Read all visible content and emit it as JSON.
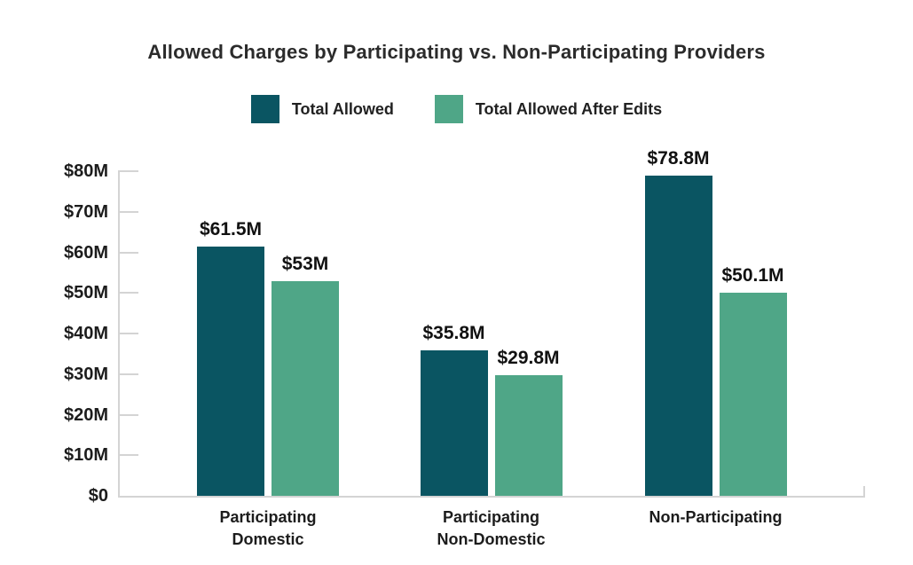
{
  "title": "Allowed Charges by Participating vs. Non-Participating Providers",
  "legend": [
    {
      "label": "Total Allowed",
      "color": "#0A5562"
    },
    {
      "label": "Total Allowed After Edits",
      "color": "#4FA687"
    }
  ],
  "colors": {
    "series_dark_teal": "#0A5562",
    "series_green": "#4FA687",
    "axis_gray": "#D4D4D4",
    "text": "#212121"
  },
  "chart_data": {
    "type": "bar",
    "title": "Allowed Charges by Participating vs. Non-Participating Providers",
    "categories": [
      "Participating Domestic",
      "Participating Non-Domestic",
      "Non-Participating"
    ],
    "category_lines": [
      [
        "Participating",
        "Domestic"
      ],
      [
        "Participating",
        "Non-Domestic"
      ],
      [
        "Non-Participating"
      ]
    ],
    "series": [
      {
        "name": "Total Allowed",
        "color": "#0A5562",
        "values": [
          61.5,
          35.8,
          78.8
        ],
        "labels": [
          "$61.5M",
          "$35.8M",
          "$78.8M"
        ]
      },
      {
        "name": "Total Allowed After Edits",
        "color": "#4FA687",
        "values": [
          53,
          29.8,
          50.1
        ],
        "labels": [
          "$53M",
          "$29.8M",
          "$50.1M"
        ]
      }
    ],
    "xlabel": "",
    "ylabel": "",
    "ylim": [
      0,
      80
    ],
    "ytick_values": [
      0,
      10,
      20,
      30,
      40,
      50,
      60,
      70,
      80
    ],
    "ytick_labels": [
      "$0",
      "$10M",
      "$20M",
      "$30M",
      "$40M",
      "$50M",
      "$60M",
      "$70M",
      "$80M"
    ],
    "grid": false,
    "legend_position": "top-center"
  }
}
